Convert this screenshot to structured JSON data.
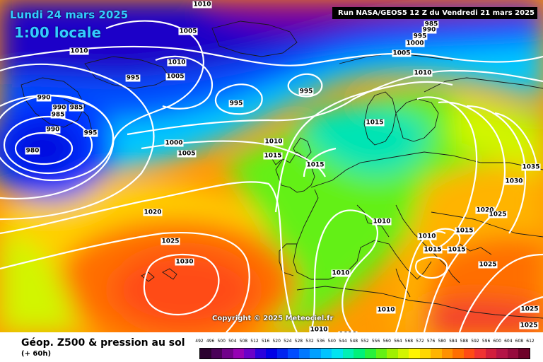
{
  "header": {
    "date_line": "Lundi 24 mars 2025",
    "time_line": "1:00 locale",
    "run_banner": "Run NASA/GEOS5 12 Z du Vendredi 21 mars 2025"
  },
  "copyright": "Copyright © 2025 Meteociel.fr",
  "footer": {
    "title": "Géop. Z500 & pression au sol",
    "subtitle": "(+ 60h)"
  },
  "legend": {
    "values": [
      "492",
      "496",
      "500",
      "504",
      "508",
      "512",
      "516",
      "520",
      "524",
      "528",
      "532",
      "536",
      "540",
      "544",
      "548",
      "552",
      "556",
      "560",
      "564",
      "568",
      "572",
      "576",
      "580",
      "584",
      "588",
      "592",
      "596",
      "600",
      "604",
      "608",
      "612"
    ],
    "colors": [
      "#2b0030",
      "#4a0058",
      "#70008a",
      "#9600b4",
      "#6a00c8",
      "#2a00dc",
      "#0000e6",
      "#0024f0",
      "#004cff",
      "#0078ff",
      "#00a0ff",
      "#00c4ff",
      "#00e4f0",
      "#00f0b4",
      "#00f07a",
      "#28f03c",
      "#64f014",
      "#a0f000",
      "#d2f500",
      "#fff500",
      "#ffd700",
      "#ffb400",
      "#ff9100",
      "#ff6e00",
      "#ff4b14",
      "#f03232",
      "#d21e3c",
      "#b41446",
      "#960a3c",
      "#6e0028"
    ]
  },
  "isobar_labels": [
    {
      "text": "1010"
    },
    {
      "text": "1005"
    },
    {
      "text": "1010"
    },
    {
      "text": "1010"
    },
    {
      "text": "1005"
    },
    {
      "text": "995"
    },
    {
      "text": "990"
    },
    {
      "text": "985"
    },
    {
      "text": "990"
    },
    {
      "text": "990"
    },
    {
      "text": "995"
    },
    {
      "text": "985"
    },
    {
      "text": "980"
    },
    {
      "text": "995"
    },
    {
      "text": "995"
    },
    {
      "text": "1000"
    },
    {
      "text": "1005"
    },
    {
      "text": "1010"
    },
    {
      "text": "1015"
    },
    {
      "text": "1015"
    },
    {
      "text": "1020"
    },
    {
      "text": "1025"
    },
    {
      "text": "1030"
    },
    {
      "text": "985"
    },
    {
      "text": "990"
    },
    {
      "text": "995"
    },
    {
      "text": "1000"
    },
    {
      "text": "1005"
    },
    {
      "text": "1010"
    },
    {
      "text": "1015"
    },
    {
      "text": "1010"
    },
    {
      "text": "1010"
    },
    {
      "text": "1035"
    },
    {
      "text": "1030"
    },
    {
      "text": "1020"
    },
    {
      "text": "1025"
    },
    {
      "text": "1015"
    },
    {
      "text": "1010"
    },
    {
      "text": "1015"
    },
    {
      "text": "1015"
    },
    {
      "text": "1025"
    },
    {
      "text": "1010"
    },
    {
      "text": "1010"
    },
    {
      "text": "1010"
    },
    {
      "text": "1025"
    },
    {
      "text": "1025"
    }
  ]
}
